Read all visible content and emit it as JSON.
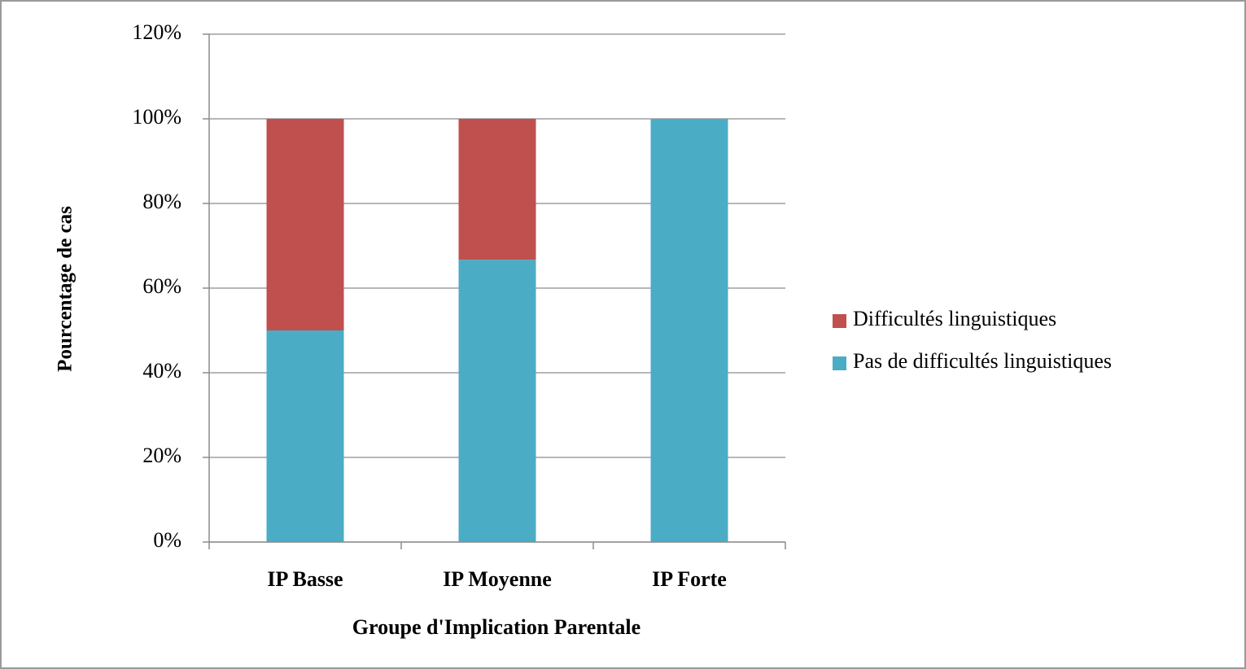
{
  "chart_data": {
    "type": "stacked_bar",
    "x_label": "Groupe d'Implication Parentale",
    "y_label": "Pourcentage de cas",
    "categories": [
      "IP Basse",
      "IP Moyenne",
      "IP Forte"
    ],
    "series": [
      {
        "name": "Pas de difficultés linguistiques",
        "color": "#4bacc6",
        "values": [
          50,
          66.7,
          100
        ]
      },
      {
        "name": "Difficultés linguistiques",
        "color": "#c0504d",
        "values": [
          50,
          33.3,
          0
        ]
      }
    ],
    "ylim": [
      0,
      120
    ],
    "yticks": [
      {
        "value": 0,
        "label": "0%"
      },
      {
        "value": 20,
        "label": "20%"
      },
      {
        "value": 40,
        "label": "40%"
      },
      {
        "value": 60,
        "label": "60%"
      },
      {
        "value": 80,
        "label": "80%"
      },
      {
        "value": 100,
        "label": "100%"
      },
      {
        "value": 120,
        "label": "120%"
      }
    ],
    "grid": true,
    "legend": "right"
  }
}
